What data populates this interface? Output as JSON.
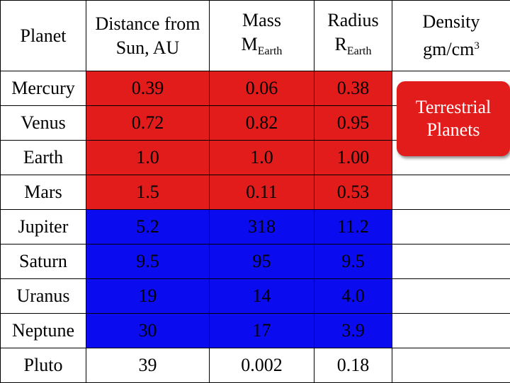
{
  "headers": {
    "planet": "Planet",
    "distance_line1": "Distance from",
    "distance_line2": "Sun, AU",
    "mass_line1": "Mass",
    "mass_symbol": "M",
    "mass_sub": "Earth",
    "radius_line1": "Radius",
    "radius_symbol": "R",
    "radius_sub": "Earth",
    "density_line1": "Density",
    "density_unit": "gm/cm",
    "density_exp": "3"
  },
  "colors": {
    "terrestrial": "#e21b1b",
    "jovian": "#0b0bf0"
  },
  "rows": [
    {
      "name": "Mercury",
      "distance": "0.39",
      "mass": "0.06",
      "radius": "0.38",
      "group": "red"
    },
    {
      "name": "Venus",
      "distance": "0.72",
      "mass": "0.82",
      "radius": "0.95",
      "group": "red"
    },
    {
      "name": "Earth",
      "distance": "1.0",
      "mass": "1.0",
      "radius": "1.00",
      "group": "red"
    },
    {
      "name": "Mars",
      "distance": "1.5",
      "mass": "0.11",
      "radius": "0.53",
      "group": "red"
    },
    {
      "name": "Jupiter",
      "distance": "5.2",
      "mass": "318",
      "radius": "11.2",
      "group": "blue"
    },
    {
      "name": "Saturn",
      "distance": "9.5",
      "mass": "95",
      "radius": "9.5",
      "group": "blue"
    },
    {
      "name": "Uranus",
      "distance": "19",
      "mass": "14",
      "radius": "4.0",
      "group": "blue"
    },
    {
      "name": "Neptune",
      "distance": "30",
      "mass": "17",
      "radius": "3.9",
      "group": "blue"
    },
    {
      "name": "Pluto",
      "distance": "39",
      "mass": "0.002",
      "radius": "0.18",
      "group": "none"
    }
  ],
  "callout": {
    "line1": "Terrestrial",
    "line2": "Planets"
  }
}
